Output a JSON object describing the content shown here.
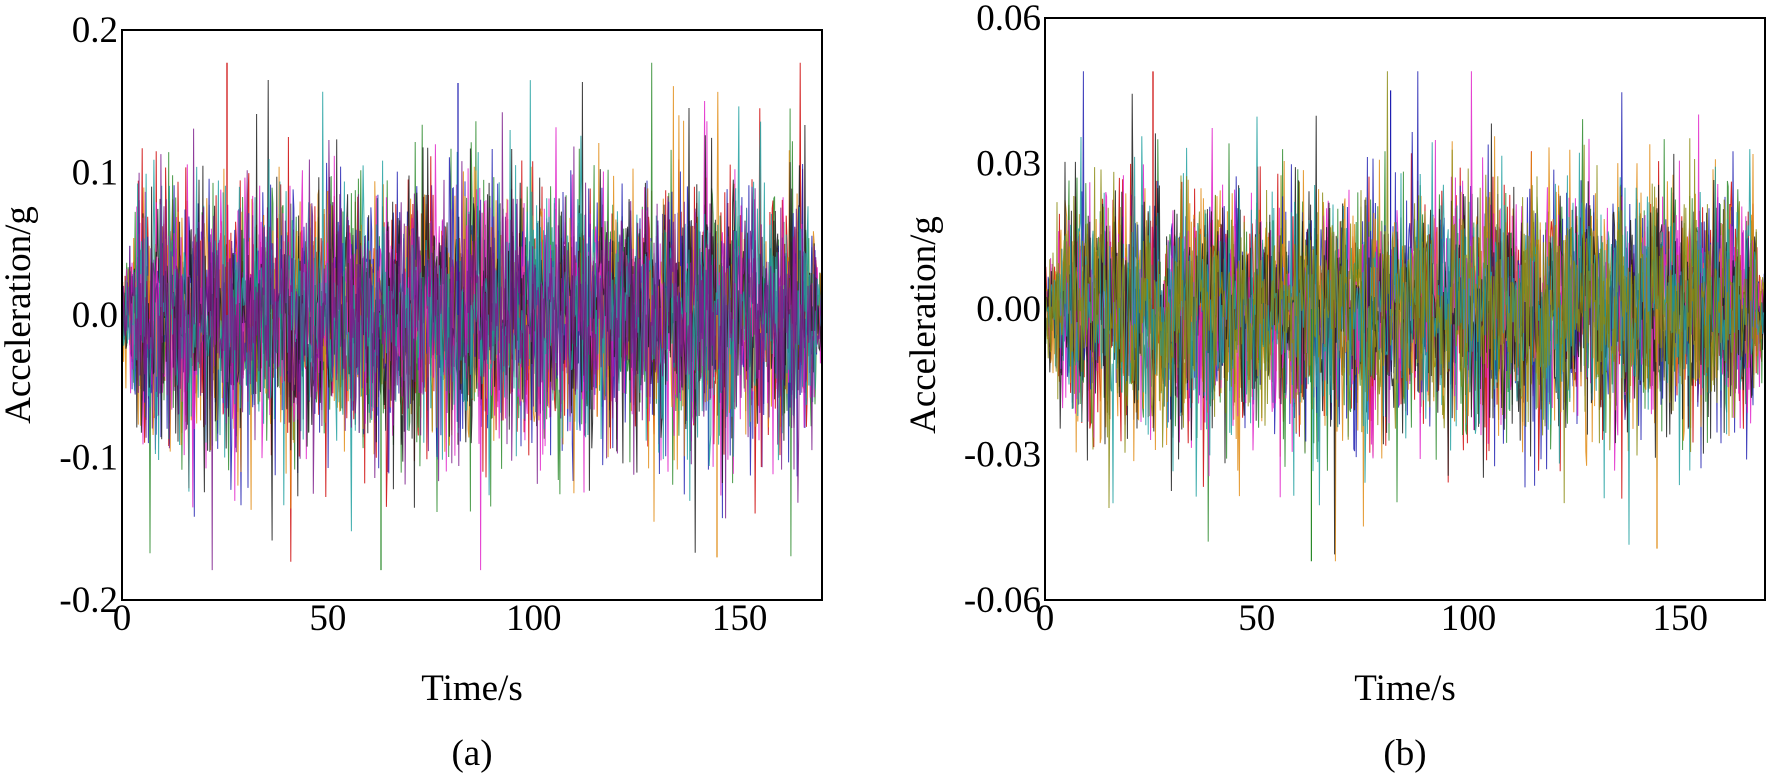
{
  "chart_data": [
    {
      "type": "line",
      "panel_label": "(a)",
      "xlabel": "Time/s",
      "ylabel": "Acceleration/g",
      "xlim": [
        0,
        170
      ],
      "ylim": [
        -0.2,
        0.2
      ],
      "x_ticks": [
        0,
        50,
        100,
        150
      ],
      "y_ticks": [
        -0.2,
        -0.1,
        0.0,
        0.1,
        0.2
      ],
      "x_tick_labels": [
        "0",
        "50",
        "100",
        "150"
      ],
      "y_tick_labels": [
        "-0.2",
        "-0.1",
        "0.0",
        "0.1",
        "0.2"
      ],
      "grid": false,
      "legend": "none",
      "signal": {
        "duration": 170,
        "ramp_up_end": 4,
        "ramp_down_start": 166,
        "typical_envelope": 0.08,
        "peak_max": 0.177,
        "peak_min": -0.179
      },
      "series_colors": [
        "#cc0000",
        "#2a8a2a",
        "#1f1fb0",
        "#e08a10",
        "#e020c8",
        "#1a1a1a",
        "#20a0a0",
        "#7a1a8a"
      ]
    },
    {
      "type": "line",
      "panel_label": "(b)",
      "xlabel": "Time/s",
      "ylabel": "Acceleration/g",
      "xlim": [
        0,
        170
      ],
      "ylim": [
        -0.06,
        0.06
      ],
      "x_ticks": [
        0,
        50,
        100,
        150
      ],
      "y_ticks": [
        -0.06,
        -0.03,
        0.0,
        0.03,
        0.06
      ],
      "x_tick_labels": [
        "0",
        "50",
        "100",
        "150"
      ],
      "y_tick_labels": [
        "-0.06",
        "-0.03",
        "0.00",
        "0.03",
        "0.06"
      ],
      "grid": false,
      "legend": "none",
      "signal": {
        "duration": 170,
        "ramp_up_end": 4,
        "ramp_down_start": 166,
        "typical_envelope": 0.022,
        "peak_max": 0.049,
        "peak_min": -0.052
      },
      "series_colors": [
        "#cc0000",
        "#2a8a2a",
        "#1f1fb0",
        "#e08a10",
        "#e020c8",
        "#1a1a1a",
        "#20a0a0",
        "#8a8a10"
      ]
    }
  ]
}
